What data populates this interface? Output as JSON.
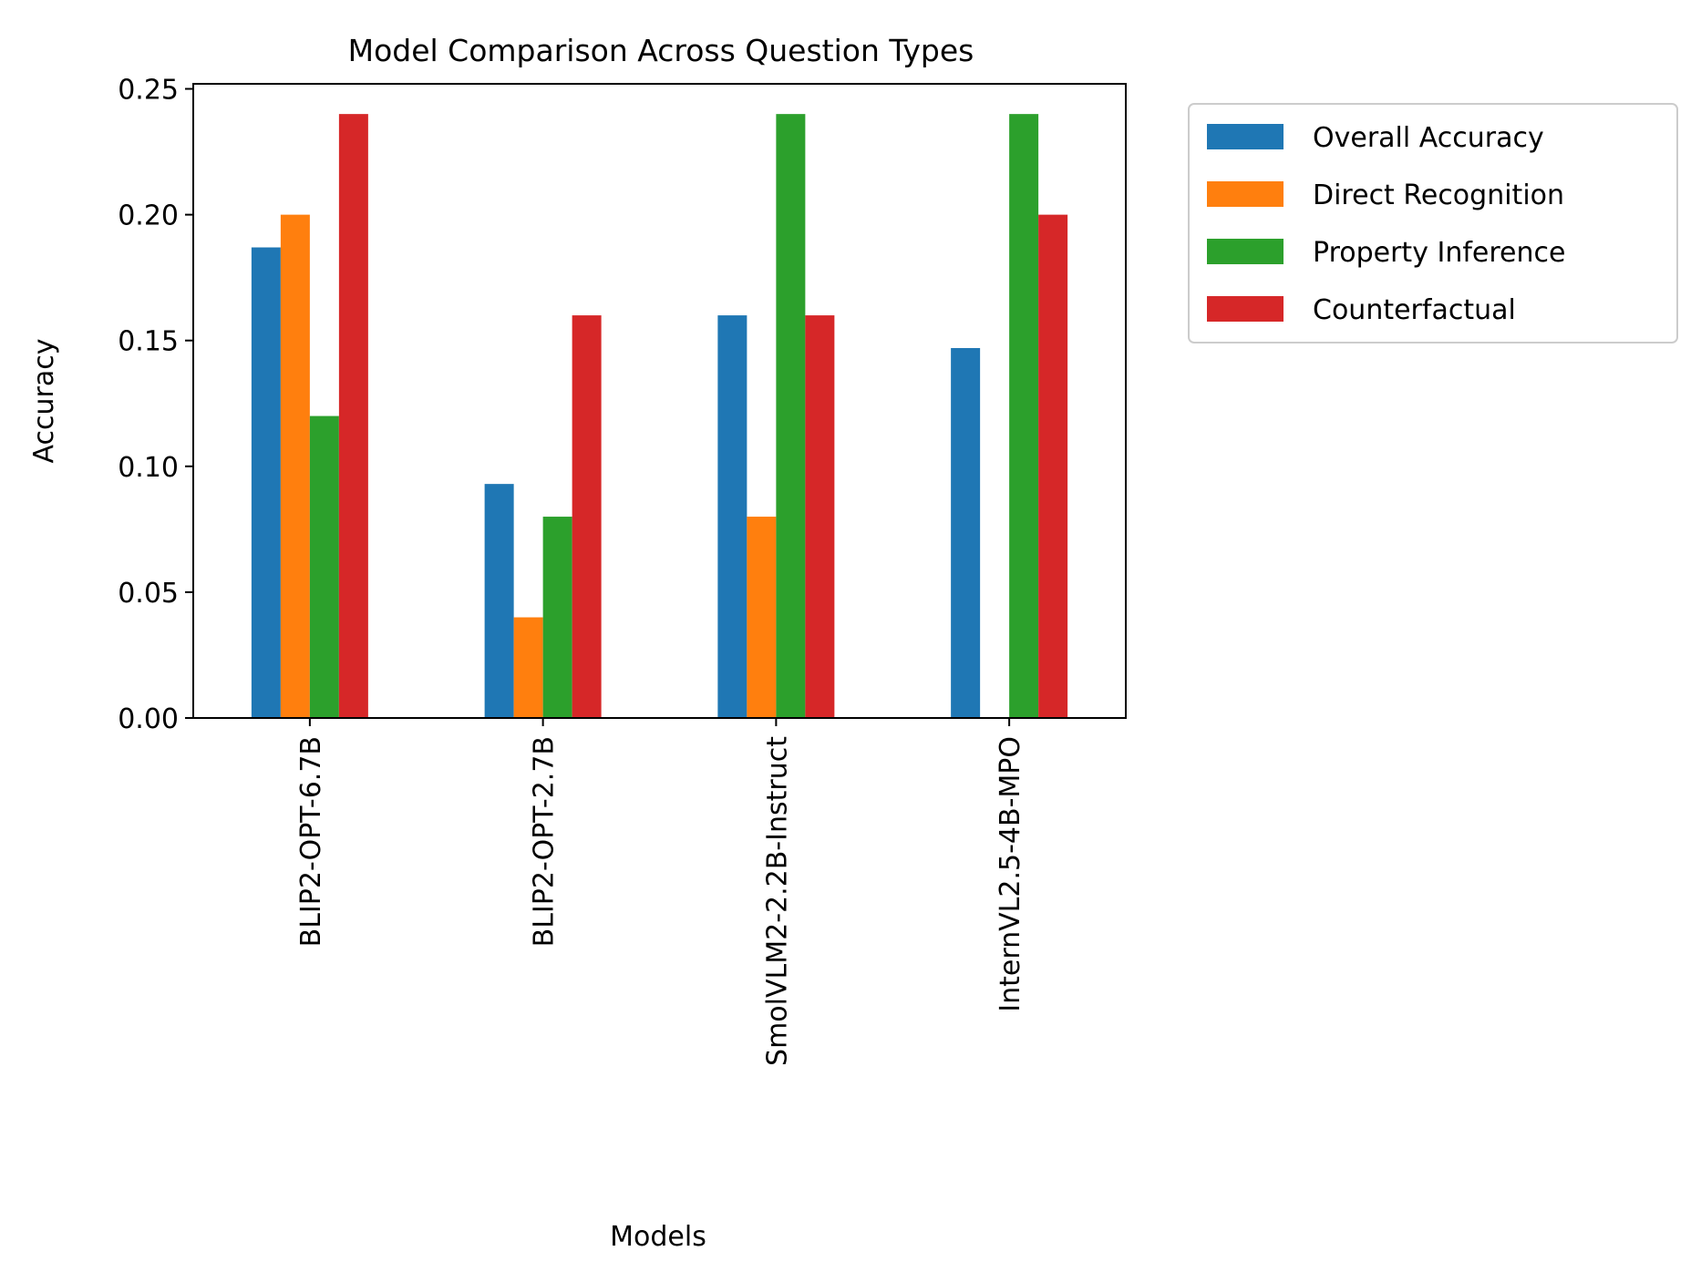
{
  "chart_data": {
    "type": "bar",
    "title": "Model Comparison Across Question Types",
    "xlabel": "Models",
    "ylabel": "Accuracy",
    "ylim": [
      0,
      0.252
    ],
    "yticks": [
      "0.00",
      "0.05",
      "0.10",
      "0.15",
      "0.20",
      "0.25"
    ],
    "grid": false,
    "legend_placement": "outside-upper-right",
    "categories": [
      "BLIP2-OPT-6.7B",
      "BLIP2-OPT-2.7B",
      "SmolVLM2-2.2B-Instruct",
      "InternVL2.5-4B-MPO"
    ],
    "series": [
      {
        "name": "Overall Accuracy",
        "color": "#1f77b4",
        "values": [
          0.187,
          0.093,
          0.16,
          0.147
        ]
      },
      {
        "name": "Direct Recognition",
        "color": "#ff7f0e",
        "values": [
          0.2,
          0.04,
          0.08,
          0.0
        ]
      },
      {
        "name": "Property Inference",
        "color": "#2ca02c",
        "values": [
          0.12,
          0.08,
          0.24,
          0.24
        ]
      },
      {
        "name": "Counterfactual",
        "color": "#d62728",
        "values": [
          0.24,
          0.16,
          0.16,
          0.2
        ]
      }
    ]
  }
}
